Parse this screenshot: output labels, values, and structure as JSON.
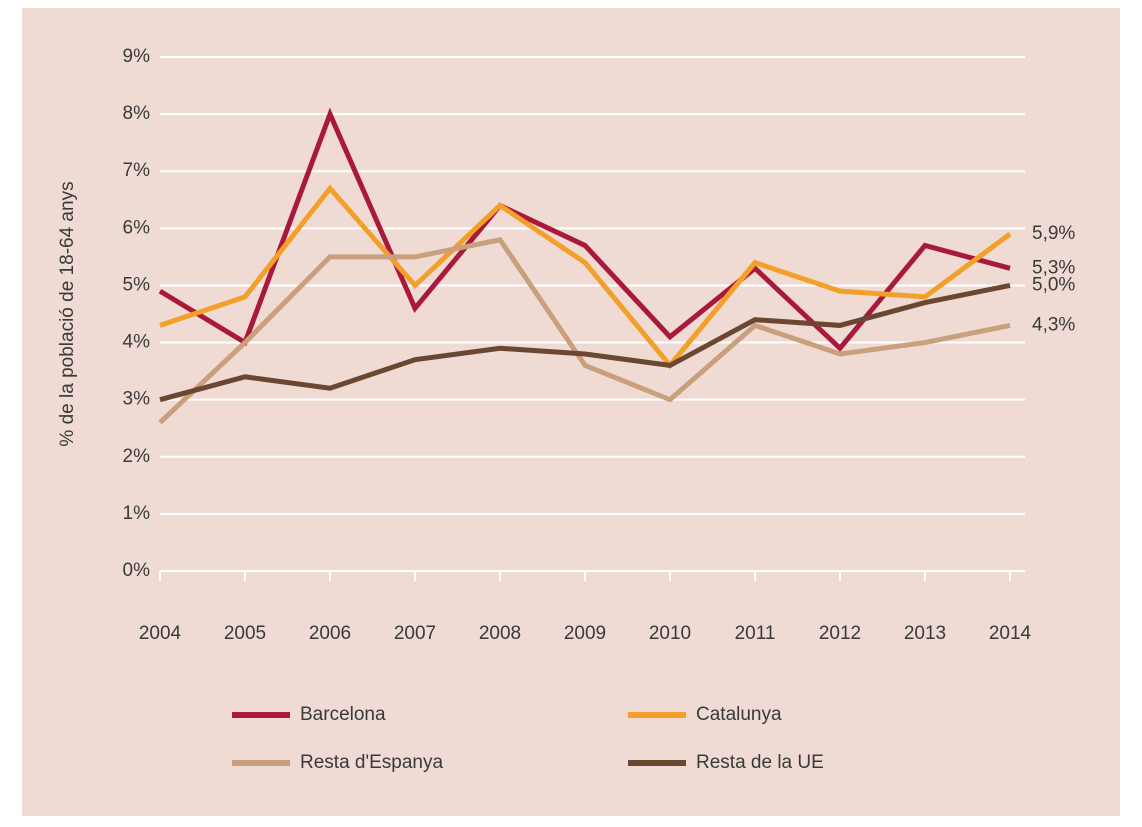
{
  "chart_data": {
    "type": "line",
    "y_label": "% de la població de 18-64 anys",
    "categories": [
      "2004",
      "2005",
      "2006",
      "2007",
      "2008",
      "2009",
      "2010",
      "2011",
      "2012",
      "2013",
      "2014"
    ],
    "series": [
      {
        "name": "Barcelona",
        "color": "#a8193c",
        "values": [
          4.9,
          4.0,
          8.0,
          4.6,
          6.4,
          5.7,
          4.1,
          5.3,
          3.9,
          5.7,
          5.3
        ]
      },
      {
        "name": "Catalunya",
        "color": "#f3a02a",
        "values": [
          4.3,
          4.8,
          6.7,
          5.0,
          6.4,
          5.4,
          3.6,
          5.4,
          4.9,
          4.8,
          5.9
        ]
      },
      {
        "name": "Resta d'Espanya",
        "color": "#c8a07c",
        "values": [
          2.6,
          4.0,
          5.5,
          5.5,
          5.8,
          3.6,
          3.0,
          4.3,
          3.8,
          4.0,
          4.3
        ]
      },
      {
        "name": "Resta de la UE",
        "color": "#6b4630",
        "values": [
          3.0,
          3.4,
          3.2,
          3.7,
          3.9,
          3.8,
          3.6,
          4.4,
          4.3,
          4.7,
          5.0
        ]
      }
    ],
    "annotations": [
      {
        "text": "5,9%",
        "y": 5.9
      },
      {
        "text": "5,3%",
        "y": 5.3
      },
      {
        "text": "5,0%",
        "y": 5.0
      },
      {
        "text": "4,3%",
        "y": 4.3
      }
    ],
    "ylim": [
      0,
      9
    ],
    "yticks": [
      {
        "value": 0,
        "label": "0%"
      },
      {
        "value": 1,
        "label": "1%"
      },
      {
        "value": 2,
        "label": "2%"
      },
      {
        "value": 3,
        "label": "3%"
      },
      {
        "value": 4,
        "label": "4%"
      },
      {
        "value": 5,
        "label": "5%"
      },
      {
        "value": 6,
        "label": "6%"
      },
      {
        "value": 7,
        "label": "7%"
      },
      {
        "value": 8,
        "label": "8%"
      },
      {
        "value": 9,
        "label": "9%"
      }
    ],
    "grid": true,
    "legend": "bottom"
  }
}
